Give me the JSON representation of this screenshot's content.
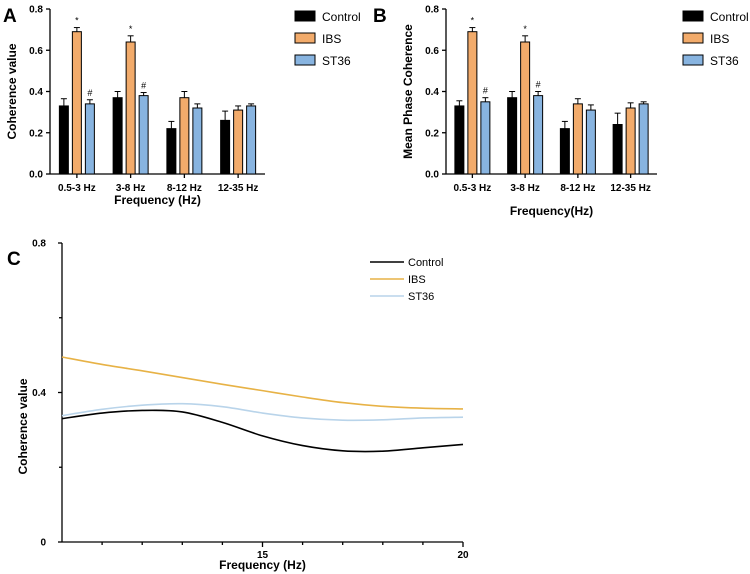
{
  "panels": {
    "a": "A",
    "b": "B",
    "c": "C"
  },
  "colors": {
    "control": "#000000",
    "ibs": "#f2ab6b",
    "st36": "#88b4e0",
    "line_ibs": "#e7b246",
    "line_st36": "#b9d4ea"
  },
  "chart_data": [
    {
      "id": "A",
      "type": "bar",
      "categories": [
        "0.5-3 Hz",
        "3-8 Hz",
        "8-12 Hz",
        "12-35 Hz"
      ],
      "series": [
        {
          "name": "Control",
          "values": [
            0.33,
            0.37,
            0.22,
            0.26
          ],
          "errors": [
            0.035,
            0.03,
            0.035,
            0.045
          ]
        },
        {
          "name": "IBS",
          "values": [
            0.69,
            0.64,
            0.37,
            0.31
          ],
          "errors": [
            0.02,
            0.03,
            0.03,
            0.02
          ]
        },
        {
          "name": "ST36",
          "values": [
            0.34,
            0.38,
            0.32,
            0.33
          ],
          "errors": [
            0.02,
            0.015,
            0.02,
            0.01
          ]
        }
      ],
      "annotations": [
        {
          "series": "IBS",
          "category": "0.5-3 Hz",
          "text": "*"
        },
        {
          "series": "ST36",
          "category": "0.5-3 Hz",
          "text": "#"
        },
        {
          "series": "IBS",
          "category": "3-8 Hz",
          "text": "*"
        },
        {
          "series": "ST36",
          "category": "3-8 Hz",
          "text": "#"
        }
      ],
      "yticks": [
        "0.0",
        "0.2",
        "0.4",
        "0.6",
        "0.8"
      ],
      "ylim": [
        0,
        0.8
      ],
      "xlabel": "Frequency (Hz)",
      "ylabel": "Coherence value",
      "legend_position": "right"
    },
    {
      "id": "B",
      "type": "bar",
      "categories": [
        "0.5-3 Hz",
        "3-8 Hz",
        "8-12 Hz",
        "12-35 Hz"
      ],
      "series": [
        {
          "name": "Control",
          "values": [
            0.33,
            0.37,
            0.22,
            0.24
          ],
          "errors": [
            0.025,
            0.03,
            0.035,
            0.055
          ]
        },
        {
          "name": "IBS",
          "values": [
            0.69,
            0.64,
            0.34,
            0.32
          ],
          "errors": [
            0.02,
            0.03,
            0.025,
            0.025
          ]
        },
        {
          "name": "ST36",
          "values": [
            0.35,
            0.38,
            0.31,
            0.34
          ],
          "errors": [
            0.02,
            0.02,
            0.025,
            0.01
          ]
        }
      ],
      "annotations": [
        {
          "series": "IBS",
          "category": "0.5-3 Hz",
          "text": "*"
        },
        {
          "series": "ST36",
          "category": "0.5-3 Hz",
          "text": "#"
        },
        {
          "series": "IBS",
          "category": "3-8 Hz",
          "text": "*"
        },
        {
          "series": "ST36",
          "category": "3-8 Hz",
          "text": "#"
        }
      ],
      "yticks": [
        "0.0",
        "0.2",
        "0.4",
        "0.6",
        "0.8"
      ],
      "ylim": [
        0,
        0.8
      ],
      "xlabel": "Frequency(Hz)",
      "ylabel": "Mean Phase Coherence",
      "legend_position": "right"
    },
    {
      "id": "C",
      "type": "line",
      "x": [
        10,
        11,
        12,
        13,
        14,
        15,
        16,
        17,
        18,
        19,
        20
      ],
      "series": [
        {
          "name": "Control",
          "values": [
            0.33,
            0.345,
            0.352,
            0.348,
            0.32,
            0.284,
            0.258,
            0.244,
            0.243,
            0.252,
            0.261
          ]
        },
        {
          "name": "IBS",
          "values": [
            0.495,
            0.475,
            0.458,
            0.44,
            0.422,
            0.405,
            0.388,
            0.373,
            0.363,
            0.358,
            0.356
          ]
        },
        {
          "name": "ST36",
          "values": [
            0.338,
            0.355,
            0.366,
            0.37,
            0.362,
            0.345,
            0.332,
            0.326,
            0.327,
            0.332,
            0.334
          ]
        }
      ],
      "xticks": [
        "15",
        "20"
      ],
      "yticks": [
        "0",
        "0.4",
        "0.8"
      ],
      "xlim": [
        10,
        20
      ],
      "ylim": [
        0,
        0.8
      ],
      "xlabel": "Frequency (Hz)",
      "ylabel": "Coherence value",
      "legend_position": "top-right"
    }
  ]
}
